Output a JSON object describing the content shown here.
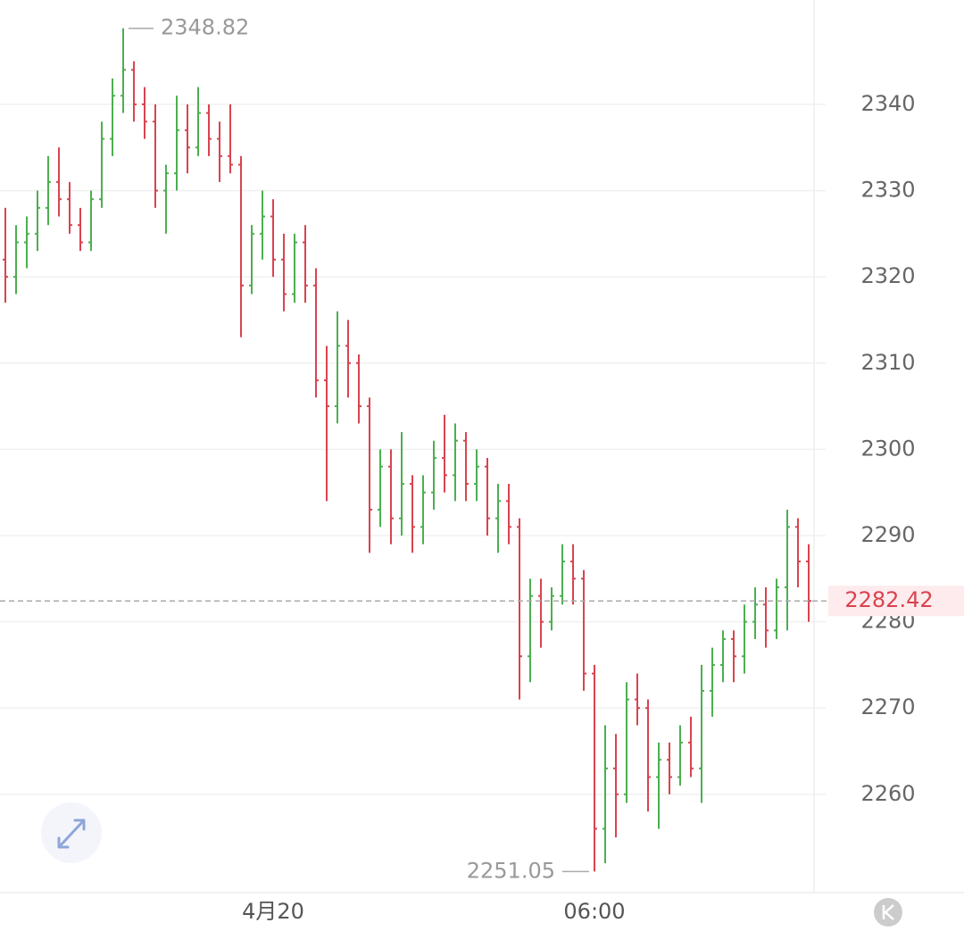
{
  "chart_data": {
    "type": "ohlc",
    "up_color": "#4caf50",
    "down_color": "#d9434f",
    "ylim": [
      2248.6,
      2352.1
    ],
    "yticks": [
      2260,
      2270,
      2280,
      2290,
      2300,
      2310,
      2320,
      2330,
      2340
    ],
    "grid": true,
    "high_marker": 2348.82,
    "low_marker": 2251.05,
    "last_price": 2282.42,
    "categories": [
      null,
      null,
      null,
      null,
      null,
      null,
      null,
      null,
      null,
      null,
      null,
      null,
      null,
      null,
      null,
      null,
      null,
      null,
      null,
      null,
      null,
      null,
      null,
      null,
      null,
      "4月20",
      null,
      null,
      null,
      null,
      null,
      null,
      null,
      null,
      null,
      null,
      null,
      null,
      null,
      null,
      null,
      null,
      null,
      null,
      null,
      null,
      null,
      null,
      null,
      null,
      null,
      null,
      null,
      null,
      null,
      "06:00",
      null,
      null,
      null,
      null,
      null,
      null,
      null,
      null,
      null,
      null,
      null,
      null,
      null,
      null,
      null,
      null,
      null,
      null,
      null,
      null
    ],
    "open": [
      2322,
      2320,
      2324,
      2325,
      2328,
      2331,
      2329,
      2326,
      2324,
      2329,
      2336,
      2341,
      2344,
      2340,
      2338,
      2330,
      2332,
      2337,
      2335,
      2339,
      2336,
      2334,
      2333,
      2319,
      2325,
      2327,
      2322,
      2318,
      2324,
      2319,
      2308,
      2305,
      2312,
      2310,
      2305,
      2293,
      2298,
      2292,
      2296,
      2291,
      2295,
      2299,
      2297,
      2301,
      2296,
      2298,
      2292,
      2294,
      2291,
      2276,
      2283,
      2280,
      2283,
      2287,
      2285,
      2274,
      2256,
      2263,
      2260,
      2271,
      2270,
      2262,
      2264,
      2262,
      2266,
      2263,
      2272,
      2275,
      2278,
      2276,
      2280,
      2282,
      2279,
      2284,
      2291,
      2287
    ],
    "high": [
      2328,
      2326,
      2327,
      2330,
      2334,
      2335,
      2331,
      2328,
      2330,
      2338,
      2343,
      2348.82,
      2345,
      2342,
      2340,
      2333,
      2341,
      2340,
      2342,
      2340,
      2338,
      2340,
      2334,
      2326,
      2330,
      2329,
      2325,
      2325,
      2326,
      2321,
      2312,
      2316,
      2315,
      2311,
      2306,
      2300,
      2300,
      2302,
      2297,
      2297,
      2301,
      2304,
      2303,
      2302,
      2300,
      2299,
      2296,
      2296,
      2292,
      2285,
      2285,
      2284,
      2289,
      2289,
      2286,
      2275,
      2268,
      2267,
      2273,
      2274,
      2271,
      2266,
      2266,
      2268,
      2269,
      2275,
      2277,
      2279,
      2279,
      2282,
      2284,
      2284,
      2285,
      2293,
      2292,
      2289
    ],
    "low": [
      2317,
      2318,
      2321,
      2323,
      2326,
      2327,
      2325,
      2323,
      2323,
      2328,
      2334,
      2339,
      2338,
      2336,
      2328,
      2325,
      2330,
      2332,
      2334,
      2334,
      2331,
      2332,
      2313,
      2318,
      2322,
      2320,
      2316,
      2317,
      2317,
      2306,
      2294,
      2303,
      2306,
      2303,
      2288,
      2291,
      2289,
      2290,
      2288,
      2289,
      2293,
      2295,
      2294,
      2294,
      2294,
      2290,
      2288,
      2289,
      2271,
      2273,
      2277,
      2279,
      2282,
      2282,
      2272,
      2251.05,
      2252,
      2255,
      2259,
      2268,
      2258,
      2256,
      2260,
      2261,
      2262,
      2259,
      2269,
      2273,
      2273,
      2274,
      2278,
      2277,
      2278,
      2279,
      2284,
      2280
    ],
    "close": [
      2320,
      2324,
      2325,
      2328,
      2331,
      2329,
      2326,
      2324,
      2329,
      2336,
      2341,
      2344,
      2340,
      2338,
      2330,
      2332,
      2337,
      2335,
      2339,
      2336,
      2334,
      2333,
      2319,
      2325,
      2327,
      2322,
      2318,
      2324,
      2319,
      2308,
      2305,
      2312,
      2310,
      2305,
      2293,
      2298,
      2292,
      2296,
      2291,
      2295,
      2299,
      2297,
      2301,
      2296,
      2298,
      2292,
      2294,
      2291,
      2276,
      2283,
      2280,
      2283,
      2287,
      2285,
      2274,
      2256,
      2263,
      2260,
      2271,
      2270,
      2262,
      2264,
      2262,
      2266,
      2263,
      2272,
      2275,
      2278,
      2276,
      2280,
      2282,
      2279,
      2284,
      2291,
      2287,
      2282.42
    ]
  }
}
